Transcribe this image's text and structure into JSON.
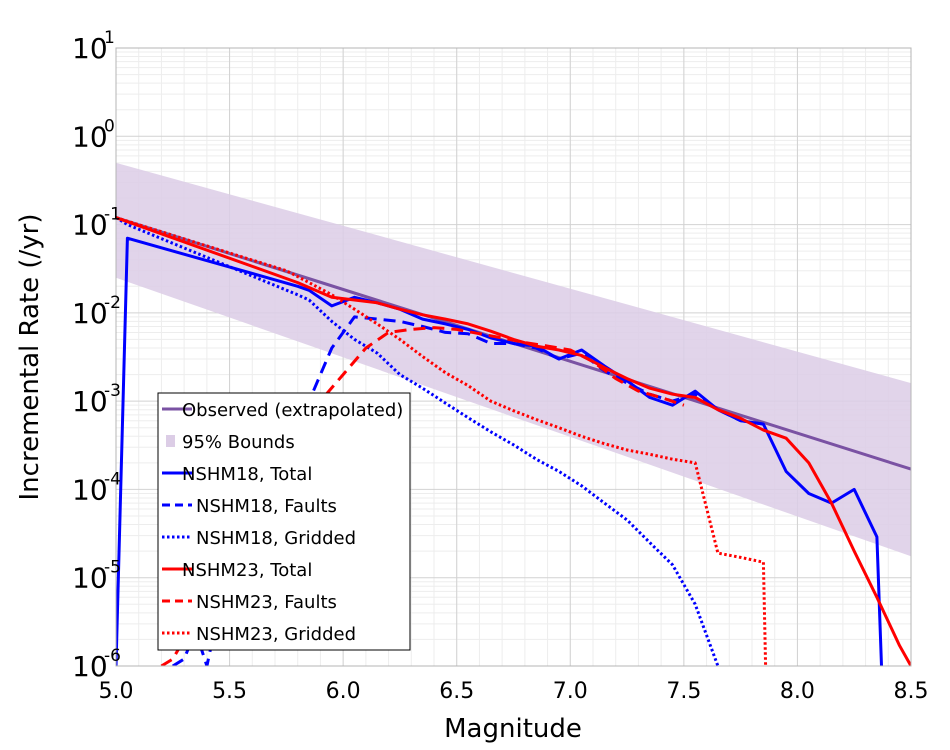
{
  "chart_data": {
    "type": "line",
    "xlabel": "Magnitude",
    "ylabel": "Incremental Rate (/yr)",
    "xlim": [
      5.0,
      8.5
    ],
    "ylim": [
      1e-06,
      10
    ],
    "yscale": "log",
    "grid": true,
    "legend_position": "bottom-left",
    "xticks": [
      "5.0",
      "5.5",
      "6.0",
      "6.5",
      "7.0",
      "7.5",
      "8.0",
      "8.5"
    ],
    "yticks": [
      {
        "base": "10",
        "exp": "1"
      },
      {
        "base": "10",
        "exp": "0"
      },
      {
        "base": "10",
        "exp": "-1"
      },
      {
        "base": "10",
        "exp": "-2"
      },
      {
        "base": "10",
        "exp": "-3"
      },
      {
        "base": "10",
        "exp": "-4"
      },
      {
        "base": "10",
        "exp": "-5"
      },
      {
        "base": "10",
        "exp": "-6"
      }
    ],
    "bounds": {
      "name": "95% Bounds",
      "color": "#dccde6",
      "x": [
        5.0,
        8.5
      ],
      "lower": [
        0.025,
        1.75e-05
      ],
      "upper": [
        0.5,
        0.0016
      ]
    },
    "series": [
      {
        "name": "Observed (extrapolated)",
        "color": "#7a52a3",
        "style": "solid",
        "x": [
          5.0,
          8.5
        ],
        "y": [
          0.12,
          0.00017
        ]
      },
      {
        "name": "NSHM18, Total",
        "color": "#0000ff",
        "style": "solid",
        "x": [
          5.0,
          5.05,
          5.8,
          5.85,
          5.95,
          6.05,
          6.15,
          6.25,
          6.35,
          6.45,
          6.55,
          6.65,
          6.75,
          6.85,
          6.95,
          7.05,
          7.15,
          7.25,
          7.35,
          7.45,
          7.55,
          7.65,
          7.75,
          7.85,
          7.95,
          8.05,
          8.15,
          8.25,
          8.35,
          8.37
        ],
        "y": [
          1e-06,
          0.07,
          0.02,
          0.018,
          0.012,
          0.015,
          0.013,
          0.011,
          0.0085,
          0.0075,
          0.0065,
          0.0052,
          0.0045,
          0.0042,
          0.003,
          0.0038,
          0.0025,
          0.0017,
          0.0011,
          0.0009,
          0.0013,
          0.0008,
          0.0006,
          0.00055,
          0.00016,
          9e-05,
          7e-05,
          0.0001,
          2.9e-05,
          1e-06
        ]
      },
      {
        "name": "NSHM18, Faults",
        "color": "#0000ff",
        "style": "dashed",
        "x": [
          5.25,
          5.3,
          5.35,
          5.4,
          5.45,
          5.5,
          5.55,
          5.6,
          5.65,
          5.7,
          5.75,
          5.8,
          5.85,
          5.9,
          5.95,
          6.05,
          6.15,
          6.25,
          6.35,
          6.45,
          6.55,
          6.65,
          6.75,
          6.85,
          6.95,
          7.05,
          7.15,
          7.25,
          7.35,
          7.45,
          7.55,
          7.65,
          7.75,
          7.85
        ],
        "y": [
          1e-06,
          1.2e-06,
          2.5e-06,
          1e-06,
          4e-06,
          4e-06,
          1e-05,
          1.2e-05,
          0.00011,
          0.00012,
          0.00013,
          0.0003,
          0.001,
          0.002,
          0.004,
          0.009,
          0.0085,
          0.008,
          0.007,
          0.006,
          0.0058,
          0.0045,
          0.0045,
          0.004,
          0.003,
          0.0035,
          0.0022,
          0.0016,
          0.0012,
          0.001,
          0.0012,
          0.0008,
          0.0006,
          0.00055
        ]
      },
      {
        "name": "NSHM18, Gridded",
        "color": "#0000ff",
        "style": "dotted",
        "x": [
          5.0,
          5.05,
          5.8,
          5.85,
          5.95,
          6.05,
          6.15,
          6.25,
          6.35,
          6.45,
          6.55,
          6.65,
          6.75,
          6.85,
          6.95,
          7.05,
          7.15,
          7.25,
          7.35,
          7.45,
          7.55,
          7.65
        ],
        "y": [
          0.12,
          0.1,
          0.016,
          0.014,
          0.008,
          0.005,
          0.0035,
          0.002,
          0.0014,
          0.00095,
          0.00065,
          0.00045,
          0.00032,
          0.00022,
          0.00016,
          0.00011,
          7e-05,
          4.5e-05,
          2.5e-05,
          1.4e-05,
          5e-06,
          1e-06
        ]
      },
      {
        "name": "NSHM23, Total",
        "color": "#ff0000",
        "style": "solid",
        "x": [
          5.0,
          5.8,
          5.95,
          6.05,
          6.15,
          6.25,
          6.35,
          6.45,
          6.55,
          6.65,
          6.75,
          6.85,
          6.95,
          7.05,
          7.15,
          7.25,
          7.35,
          7.45,
          7.55,
          7.65,
          7.75,
          7.85,
          7.95,
          8.05,
          8.15,
          8.25,
          8.35,
          8.45,
          8.5
        ],
        "y": [
          0.12,
          0.022,
          0.015,
          0.014,
          0.013,
          0.011,
          0.0095,
          0.0085,
          0.0075,
          0.0062,
          0.005,
          0.0042,
          0.0038,
          0.0033,
          0.0024,
          0.0018,
          0.0014,
          0.0012,
          0.0011,
          0.0008,
          0.00064,
          0.00047,
          0.00038,
          0.0002,
          7e-05,
          2e-05,
          6e-06,
          1.7e-06,
          1e-06
        ]
      },
      {
        "name": "NSHM23, Faults",
        "color": "#ff0000",
        "style": "dashed",
        "x": [
          5.2,
          5.25,
          5.3,
          5.4,
          5.5,
          5.6,
          5.7,
          5.75,
          5.8,
          5.9,
          6.0,
          6.1,
          6.2,
          6.3,
          6.4,
          6.5,
          6.6,
          6.7,
          6.8,
          6.9,
          7.0,
          7.1,
          7.2,
          7.3,
          7.4,
          7.5
        ],
        "y": [
          1e-06,
          1.2e-06,
          2e-06,
          8e-06,
          3e-05,
          8e-05,
          0.00015,
          0.00025,
          0.0006,
          0.001,
          0.002,
          0.004,
          0.006,
          0.0065,
          0.0068,
          0.0065,
          0.0058,
          0.0052,
          0.0046,
          0.0042,
          0.0038,
          0.0028,
          0.0018,
          0.0013,
          0.0011,
          0.0009
        ]
      },
      {
        "name": "NSHM23, Gridded",
        "color": "#ff0000",
        "style": "dotted",
        "x": [
          5.0,
          5.75,
          5.85,
          5.95,
          6.05,
          6.15,
          6.25,
          6.35,
          6.45,
          6.55,
          6.65,
          6.75,
          6.85,
          6.95,
          7.05,
          7.15,
          7.25,
          7.35,
          7.45,
          7.55,
          7.65,
          7.75,
          7.85,
          7.86
        ],
        "y": [
          0.12,
          0.03,
          0.022,
          0.016,
          0.011,
          0.0075,
          0.005,
          0.0032,
          0.0021,
          0.0015,
          0.001,
          0.00078,
          0.00062,
          0.0005,
          0.0004,
          0.00033,
          0.00028,
          0.00025,
          0.00022,
          0.0002,
          1.9e-05,
          1.7e-05,
          1.5e-05,
          1e-06
        ]
      }
    ]
  }
}
